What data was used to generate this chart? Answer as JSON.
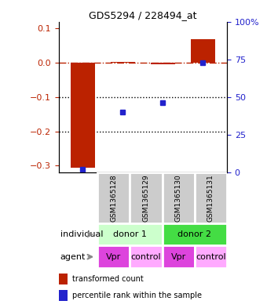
{
  "title": "GDS5294 / 228494_at",
  "bar_values": [
    -0.305,
    0.003,
    -0.005,
    0.068
  ],
  "percentile_values": [
    2,
    40,
    46,
    73
  ],
  "categories": [
    "GSM1365128",
    "GSM1365129",
    "GSM1365130",
    "GSM1365131"
  ],
  "ylim_left": [
    -0.32,
    0.12
  ],
  "ylim_right": [
    0,
    100
  ],
  "yticks_left": [
    -0.3,
    -0.2,
    -0.1,
    0.0,
    0.1
  ],
  "yticks_right": [
    0,
    25,
    50,
    75,
    100
  ],
  "bar_color": "#bb2200",
  "dot_color": "#2222cc",
  "donor1_color": "#ccffcc",
  "donor2_color": "#44dd44",
  "agent_vpr_color": "#dd44dd",
  "agent_ctrl_color": "#ffaaff",
  "gsm_bg_color": "#cccccc",
  "donor_labels": [
    "donor 1",
    "donor 2"
  ],
  "agent_labels": [
    "Vpr",
    "control",
    "Vpr",
    "control"
  ],
  "legend_red": "transformed count",
  "legend_blue": "percentile rank within the sample",
  "hline_y": 0.0,
  "dotted_lines": [
    -0.1,
    -0.2
  ],
  "bar_width": 0.6
}
